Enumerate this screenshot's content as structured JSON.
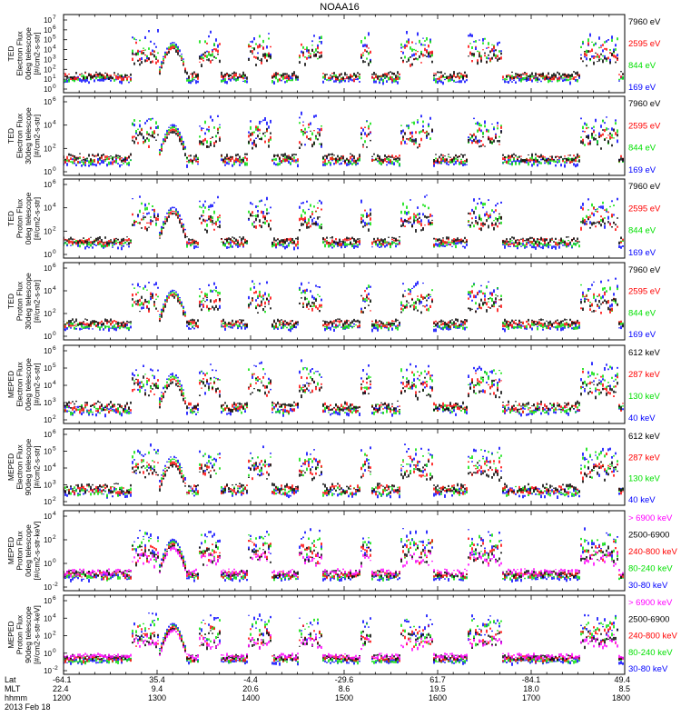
{
  "title": "NOAA16",
  "date_label": "2013 Feb 18",
  "colors": {
    "blue": "#0000ff",
    "red": "#ff0000",
    "green": "#00e000",
    "black": "#000000",
    "magenta": "#ff00ff"
  },
  "footer": {
    "row_labels": [
      "Lat",
      "MLT",
      "hhmm"
    ],
    "lat": [
      "-64.1",
      "35.4",
      "-4.4",
      "-29.6",
      "61.7",
      "-84.1",
      "49.4"
    ],
    "mlt": [
      "22.4",
      "9.4",
      "20.6",
      "8.6",
      "19.5",
      "18.0",
      "8.5"
    ],
    "hhmm": [
      "1200",
      "1300",
      "1400",
      "1500",
      "1600",
      "1700",
      "1800"
    ]
  },
  "chart_data": [
    {
      "type": "scatter",
      "ylabel": [
        "TED",
        "Electron Flux",
        "0deg telescope",
        "[#/cm2-s-str]"
      ],
      "ytick_exponents": [
        "7",
        "6",
        "5",
        "4",
        "3",
        "2",
        "1",
        "0"
      ],
      "legend": [
        {
          "label": "7960 eV",
          "color": "black"
        },
        {
          "label": "2595 eV",
          "color": "red"
        },
        {
          "label": "844 eV",
          "color": "green"
        },
        {
          "label": "169 eV",
          "color": "blue"
        }
      ],
      "ylim_log10": [
        -1,
        7
      ]
    },
    {
      "type": "scatter",
      "ylabel": [
        "TED",
        "Electron Flux",
        "30deg telescope",
        "[#/cm2-s-str]"
      ],
      "ytick_exponents": [
        "6",
        "4",
        "2",
        "0"
      ],
      "legend": [
        {
          "label": "7960 eV",
          "color": "black"
        },
        {
          "label": "2595 eV",
          "color": "red"
        },
        {
          "label": "844 eV",
          "color": "green"
        },
        {
          "label": "169 eV",
          "color": "blue"
        }
      ],
      "ylim_log10": [
        0,
        7
      ]
    },
    {
      "type": "scatter",
      "ylabel": [
        "TED",
        "Proton Flux",
        "0deg telescope",
        "[#/cm2-s-str]"
      ],
      "ytick_exponents": [
        "6",
        "4",
        "2",
        "0"
      ],
      "legend": [
        {
          "label": "7960 eV",
          "color": "black"
        },
        {
          "label": "2595 eV",
          "color": "red"
        },
        {
          "label": "844 eV",
          "color": "green"
        },
        {
          "label": "169 eV",
          "color": "blue"
        }
      ],
      "ylim_log10": [
        -1,
        7
      ]
    },
    {
      "type": "scatter",
      "ylabel": [
        "TED",
        "Proton Flux",
        "30deg telescope",
        "[#/cm2-s-str]"
      ],
      "ytick_exponents": [
        "6",
        "4",
        "2",
        "0"
      ],
      "legend": [
        {
          "label": "7960 eV",
          "color": "black"
        },
        {
          "label": "2595 eV",
          "color": "red"
        },
        {
          "label": "844 eV",
          "color": "green"
        },
        {
          "label": "169 eV",
          "color": "blue"
        }
      ],
      "ylim_log10": [
        -1,
        7
      ]
    },
    {
      "type": "scatter",
      "ylabel": [
        "MEPED",
        "Electron Flux",
        "0deg telescope",
        "[#/cm2-s-str]"
      ],
      "ytick_exponents": [
        "6",
        "5",
        "4",
        "3",
        "2"
      ],
      "legend": [
        {
          "label": "612 keV",
          "color": "black"
        },
        {
          "label": "287 keV",
          "color": "red"
        },
        {
          "label": "130 keV",
          "color": "green"
        },
        {
          "label": "40 keV",
          "color": "blue"
        }
      ],
      "ylim_log10": [
        1.5,
        7
      ]
    },
    {
      "type": "scatter",
      "ylabel": [
        "MEPED",
        "Electron Flux",
        "90deg telescope",
        "[#/cm2-s-str]"
      ],
      "ytick_exponents": [
        "6",
        "5",
        "4",
        "3",
        "2"
      ],
      "legend": [
        {
          "label": "612 keV",
          "color": "black"
        },
        {
          "label": "287 keV",
          "color": "red"
        },
        {
          "label": "130 keV",
          "color": "green"
        },
        {
          "label": "40 keV",
          "color": "blue"
        }
      ],
      "ylim_log10": [
        1.5,
        7
      ]
    },
    {
      "type": "scatter",
      "ylabel": [
        "MEPED",
        "Proton Flux",
        "0deg telescope",
        "[#/cm2-s-str-keV]"
      ],
      "ytick_exponents": [
        "4",
        "2",
        "0",
        "-2"
      ],
      "legend": [
        {
          "label": "> 6900 keV",
          "color": "magenta"
        },
        {
          "label": "2500-6900",
          "color": "black"
        },
        {
          "label": "240-800 keV",
          "color": "red"
        },
        {
          "label": "80-240 keV",
          "color": "green"
        },
        {
          "label": "30-80 keV",
          "color": "blue"
        }
      ],
      "ylim_log10": [
        -3,
        5
      ]
    },
    {
      "type": "scatter",
      "ylabel": [
        "MEPED",
        "Proton Flux",
        "90deg telescope",
        "[#/cm2-s-str-keV]"
      ],
      "ytick_exponents": [
        "6",
        "4",
        "2",
        "0",
        "-2"
      ],
      "legend": [
        {
          "label": "> 6900 keV",
          "color": "magenta"
        },
        {
          "label": "2500-6900",
          "color": "black"
        },
        {
          "label": "240-800 keV",
          "color": "red"
        },
        {
          "label": "80-240 keV",
          "color": "green"
        },
        {
          "label": "30-80 keV",
          "color": "blue"
        }
      ],
      "ylim_log10": [
        -3,
        7
      ]
    }
  ]
}
